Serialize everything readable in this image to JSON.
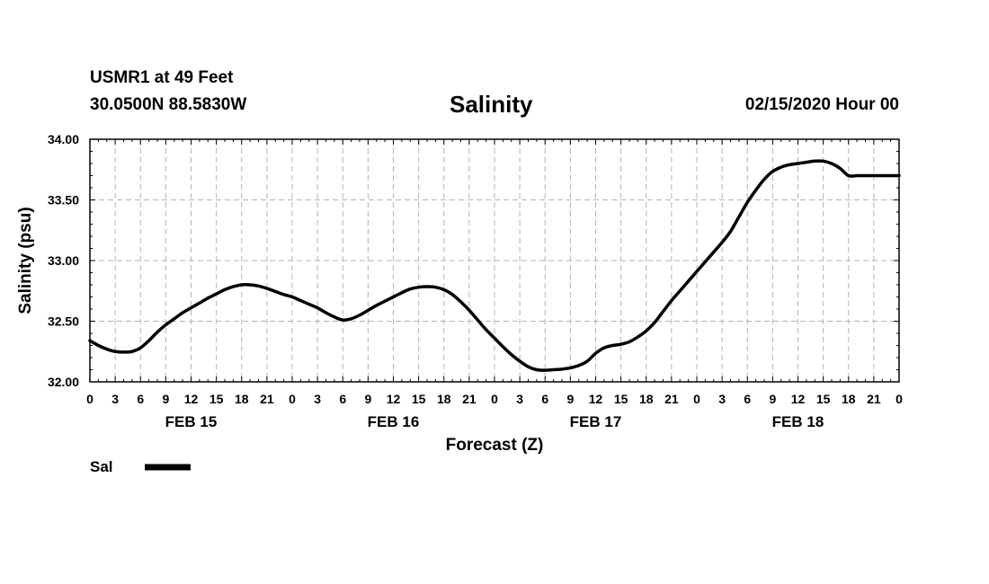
{
  "header": {
    "station": "USMR1 at 49 Feet",
    "coords": "30.0500N 88.5830W",
    "title": "Salinity",
    "run_time": "02/15/2020 Hour 00"
  },
  "colors": {
    "line": "#000000",
    "grid": "#b4b4b4",
    "axis": "#000000"
  },
  "chart_data": {
    "type": "line",
    "title": "Salinity",
    "xlabel": "Forecast (Z)",
    "ylabel": "Salinity (psu)",
    "xlim": [
      0,
      96
    ],
    "ylim": [
      32.0,
      34.0
    ],
    "x_tick_labels": [
      "0",
      "3",
      "6",
      "9",
      "12",
      "15",
      "18",
      "21",
      "0",
      "3",
      "6",
      "9",
      "12",
      "15",
      "18",
      "21",
      "0",
      "3",
      "6",
      "9",
      "12",
      "15",
      "18",
      "21",
      "0",
      "3",
      "6",
      "9",
      "12",
      "15",
      "18",
      "21",
      "0"
    ],
    "y_ticks": [
      32.0,
      32.5,
      33.0,
      33.5,
      34.0
    ],
    "y_tick_labels": [
      "32.00",
      "32.50",
      "33.00",
      "33.50",
      "34.00"
    ],
    "day_labels": [
      {
        "hour": 12,
        "label": "FEB 15"
      },
      {
        "hour": 36,
        "label": "FEB 16"
      },
      {
        "hour": 60,
        "label": "FEB 17"
      },
      {
        "hour": 84,
        "label": "FEB 18"
      }
    ],
    "grid": true,
    "legend": "bottom-left",
    "series": [
      {
        "name": "Sal",
        "x": [
          0,
          1,
          2,
          3,
          4,
          5,
          6,
          7,
          8,
          9,
          10,
          11,
          12,
          13,
          14,
          15,
          16,
          17,
          18,
          19,
          20,
          21,
          22,
          23,
          24,
          25,
          26,
          27,
          28,
          29,
          30,
          31,
          32,
          33,
          34,
          35,
          36,
          37,
          38,
          39,
          40,
          41,
          42,
          43,
          44,
          45,
          46,
          47,
          48,
          49,
          50,
          51,
          52,
          53,
          54,
          55,
          56,
          57,
          58,
          59,
          60,
          61,
          62,
          63,
          64,
          65,
          66,
          67,
          68,
          69,
          70,
          71,
          72,
          73,
          74,
          75,
          76,
          77,
          78,
          79,
          80,
          81,
          82,
          83,
          84,
          85,
          86,
          87,
          88,
          89,
          90,
          91,
          92,
          93,
          94,
          95,
          96
        ],
        "values": [
          32.34,
          32.3,
          32.27,
          32.25,
          32.245,
          32.25,
          32.28,
          32.34,
          32.41,
          32.47,
          32.52,
          32.57,
          32.61,
          32.65,
          32.69,
          32.725,
          32.76,
          32.785,
          32.8,
          32.8,
          32.79,
          32.77,
          32.745,
          32.72,
          32.7,
          32.67,
          32.64,
          32.61,
          32.57,
          32.535,
          32.51,
          32.52,
          32.55,
          32.59,
          32.63,
          32.665,
          32.7,
          32.735,
          32.765,
          32.78,
          32.785,
          32.78,
          32.76,
          32.72,
          32.66,
          32.59,
          32.51,
          32.43,
          32.36,
          32.29,
          32.225,
          32.17,
          32.125,
          32.1,
          32.095,
          32.1,
          32.105,
          32.115,
          32.135,
          32.17,
          32.235,
          32.28,
          32.3,
          32.31,
          32.33,
          32.37,
          32.42,
          32.49,
          32.58,
          32.67,
          32.75,
          32.83,
          32.91,
          32.99,
          33.07,
          33.15,
          33.24,
          33.36,
          33.48,
          33.58,
          33.67,
          33.735,
          33.77,
          33.79,
          33.8,
          33.81,
          33.82,
          33.82,
          33.8,
          33.76,
          33.7,
          33.7,
          33.7,
          33.7,
          33.7,
          33.7,
          33.7
        ]
      }
    ]
  }
}
